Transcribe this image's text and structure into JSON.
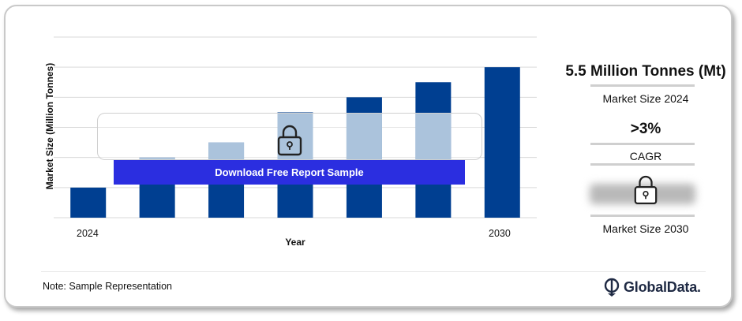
{
  "chart_data": {
    "type": "bar",
    "categories": [
      "2024",
      "",
      "",
      "",
      "",
      "",
      "2030"
    ],
    "values": [
      1,
      2,
      2.5,
      3.5,
      4,
      4.5,
      5
    ],
    "xlabel": "Year",
    "ylabel": "Market Size (Million Tonnes)",
    "ylim": [
      0,
      6
    ],
    "grid": true,
    "colors": {
      "bar": "#003f91",
      "bar_masked": "#7fa3c9",
      "grid": "#d9d9d9"
    }
  },
  "overlay": {
    "download_label": "Download Free Report Sample"
  },
  "sidebar": {
    "market_size_value": "5.5 Million Tonnes (Mt)",
    "market_size_label": "Market Size 2024",
    "cagr_value": ">3%",
    "cagr_label": "CAGR",
    "market_size_2030_label": "Market Size 2030"
  },
  "footer": {
    "note": "Note: Sample Representation",
    "brand": "GlobalData."
  },
  "icons": {
    "lock": "lock-icon",
    "logo": "globaldata-logo-icon"
  }
}
